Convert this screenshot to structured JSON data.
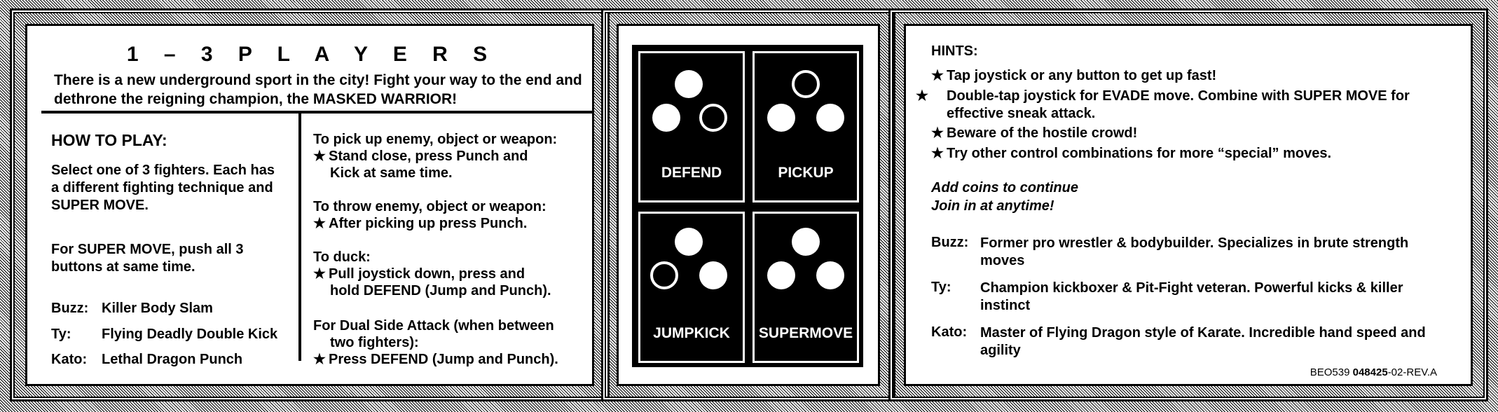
{
  "left": {
    "title": "1 – 3 P L A Y E R S",
    "intro": "There is a new underground sport in the city! Fight your way to the end and dethrone the reigning champion, the MASKED WARRIOR!",
    "how_to_play_title": "HOW TO PLAY:",
    "select_text": "Select one of 3 fighters. Each has a different fighting technique and SUPER MOVE.",
    "super_move_text": "For SUPER MOVE, push all 3 buttons at same time.",
    "moves": [
      {
        "name": "Buzz:",
        "move": "Killer Body Slam"
      },
      {
        "name": "Ty:",
        "move": "Flying Deadly Double Kick"
      },
      {
        "name": "Kato:",
        "move": "Lethal Dragon Punch"
      }
    ],
    "instructions": [
      {
        "heading": "To pick up enemy, object or weapon:",
        "line1": "Stand close, press Punch and",
        "line2": "Kick at same time."
      },
      {
        "heading": "To throw enemy, object or weapon:",
        "line1": "After picking up  press Punch.",
        "line2": ""
      },
      {
        "heading": "To duck:",
        "line1": "Pull joystick down, press and",
        "line2": "hold DEFEND (Jump and Punch)."
      },
      {
        "heading": "For Dual Side Attack (when between",
        "heading2": "two fighters):",
        "line1": "Press DEFEND (Jump and Punch).",
        "line2": ""
      }
    ],
    "star": "★"
  },
  "middle": {
    "buttons": [
      {
        "label": "DEFEND",
        "hollow": "bottom-right"
      },
      {
        "label": "PICKUP",
        "hollow": "top"
      },
      {
        "label": "JUMPKICK",
        "hollow": "bottom-left"
      },
      {
        "label": "SUPERMOVE",
        "hollow": "none"
      }
    ]
  },
  "right": {
    "hints_title": "HINTS:",
    "hints": [
      "Tap joystick or any button to get up fast!",
      "Double-tap joystick for EVADE move. Combine with SUPER MOVE for effective sneak attack.",
      "Beware of the hostile crowd!",
      "Try other control combinations for more “special” moves."
    ],
    "continue_line1": "Add coins to continue",
    "continue_line2": "Join in at anytime!",
    "fighters": [
      {
        "name": "Buzz:",
        "desc": "Former pro wrestler & bodybuilder. Specializes in brute strength moves"
      },
      {
        "name": "Ty:",
        "desc": "Champion kickboxer & Pit-Fight veteran. Powerful kicks & killer instinct"
      },
      {
        "name": "Kato:",
        "desc": "Master of Flying Dragon style of Karate. Incredible hand speed and agility"
      }
    ],
    "code_prefix": "BEO539",
    "code_main": "048425",
    "code_suffix": "-02-REV.A"
  }
}
